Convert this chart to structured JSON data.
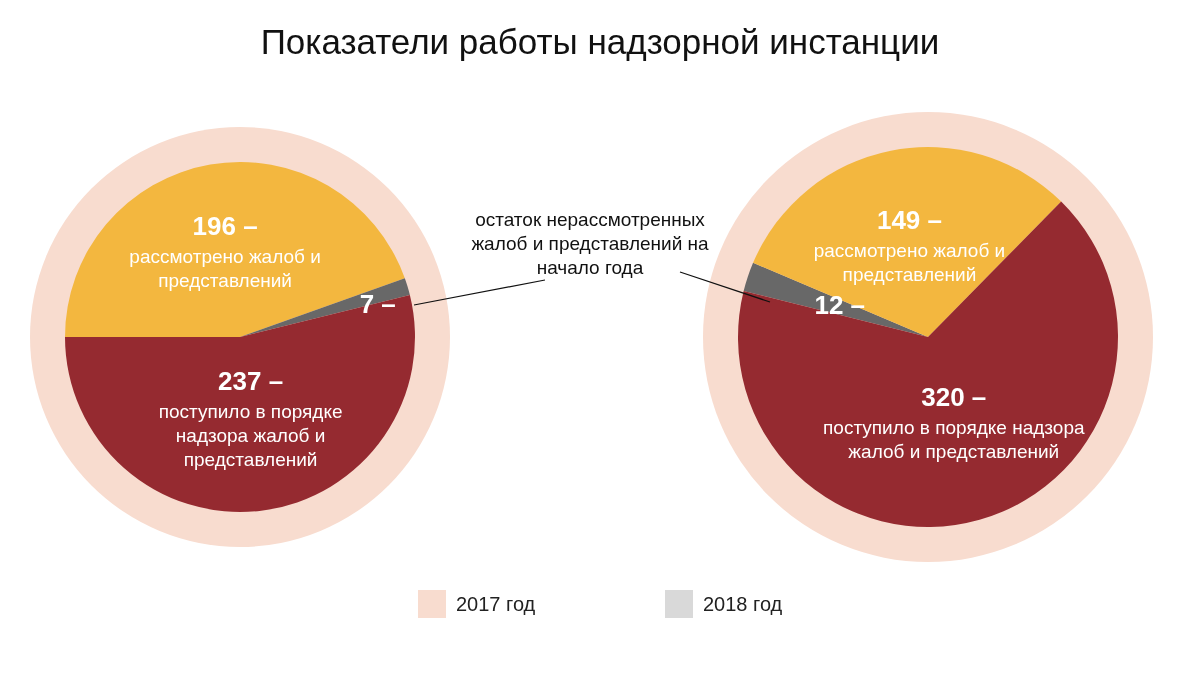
{
  "chart_data": [
    {
      "type": "pie",
      "title": "Показатели работы надзорной инстанции",
      "categories": [
        "рассмотрено жалоб и представлений",
        null,
        "поступило в порядке надзора жалоб и представлений"
      ],
      "values": [
        196,
        7,
        237
      ],
      "value_labels": [
        "196 –",
        "7 –",
        "237 –"
      ],
      "colors": [
        "#f3b73f",
        "#686868",
        "#952a30"
      ],
      "annotations": [
        "остаток нерассмотренных жалоб и представлений на начало года"
      ],
      "legend": false
    },
    {
      "type": "pie",
      "categories": [
        null,
        "рассмотрено жалоб и представлений",
        "поступило в порядке надзора жалоб и представлений"
      ],
      "values": [
        12,
        149,
        320
      ],
      "value_labels": [
        "12 –",
        "149 –",
        "320 –"
      ],
      "colors": [
        "#686868",
        "#f3b73f",
        "#952a30"
      ],
      "legend": false
    },
    {
      "type": "other",
      "categories": [
        "2017 год",
        "2018 год"
      ],
      "colors": [
        "#f8dccf",
        "#d9d9d9"
      ]
    }
  ]
}
